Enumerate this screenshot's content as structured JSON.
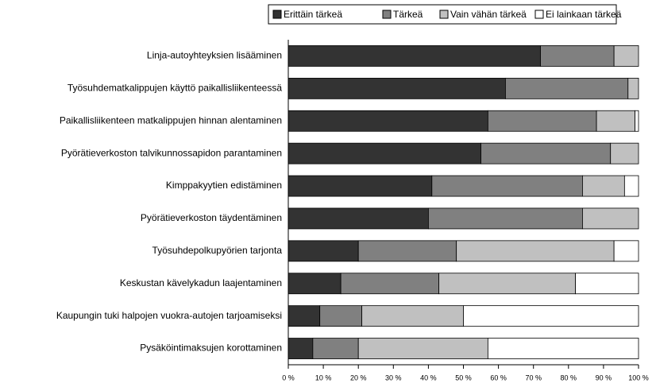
{
  "chart_data": {
    "type": "stacked-barh",
    "categories": [
      "Linja-autoyhteyksien lisääminen",
      "Työsuhdematkalippujen käyttö paikallisliikenteessä",
      "Paikallisliikenteen matkalippujen hinnan alentaminen",
      "Pyörätieverkoston talvikunnossapidon parantaminen",
      "Kimppakyytien edistäminen",
      "Pyörätieverkoston täydentäminen",
      "Työsuhdepolkupyörien tarjonta",
      "Keskustan kävelykadun laajentaminen",
      "Kaupungin tuki halpojen vuokra-autojen tarjoamiseksi",
      "Pysäköintimaksujen korottaminen"
    ],
    "series": [
      {
        "name": "Erittäin tärkeä",
        "color": "#333333",
        "values": [
          72,
          62,
          57,
          55,
          41,
          40,
          20,
          15,
          9,
          7
        ]
      },
      {
        "name": "Tärkeä",
        "color": "#808080",
        "values": [
          21,
          35,
          31,
          37,
          43,
          44,
          28,
          28,
          12,
          13
        ]
      },
      {
        "name": "Vain vähän tärkeä",
        "color": "#c0c0c0",
        "values": [
          7,
          3,
          11,
          8,
          12,
          16,
          45,
          39,
          29,
          37
        ]
      },
      {
        "name": "Ei lainkaan tärkeä",
        "color": "#ffffff",
        "values": [
          0,
          0,
          1,
          0,
          4,
          0,
          7,
          18,
          50,
          43
        ]
      }
    ],
    "xlim": [
      0,
      100
    ],
    "xticks": [
      {
        "value": 0,
        "label": "0 %"
      },
      {
        "value": 10,
        "label": "10 %"
      },
      {
        "value": 20,
        "label": "20 %"
      },
      {
        "value": 30,
        "label": "30 %"
      },
      {
        "value": 40,
        "label": "40 %"
      },
      {
        "value": 50,
        "label": "50 %"
      },
      {
        "value": 60,
        "label": "60 %"
      },
      {
        "value": 70,
        "label": "70 %"
      },
      {
        "value": 80,
        "label": "80 %"
      },
      {
        "value": 90,
        "label": "90 %"
      },
      {
        "value": 100,
        "label": "100 %"
      }
    ],
    "legend": "top"
  }
}
